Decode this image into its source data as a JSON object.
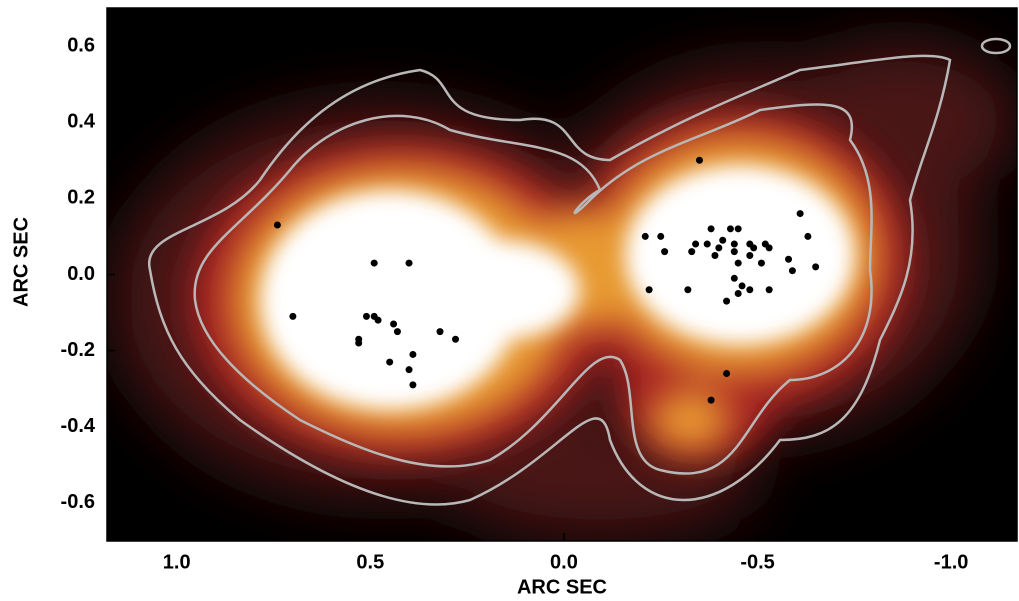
{
  "chart_data": {
    "type": "scatter",
    "x_label": "ARC SEC",
    "y_label": "ARC SEC",
    "xlim": [
      1.18,
      -1.17
    ],
    "ylim": [
      -0.7,
      0.7
    ],
    "xticks": [
      {
        "value": 1,
        "label": "1.0"
      },
      0.5,
      {
        "value": 0,
        "label": "0.0"
      },
      -0.5,
      {
        "value": -1,
        "label": "-1.0"
      }
    ],
    "yticks": [
      -0.6,
      -0.4,
      -0.2,
      {
        "value": 0,
        "label": "0.0"
      },
      0.2,
      0.4,
      0.6
    ],
    "color": "#000000",
    "x": [
      0.74,
      0.7,
      0.49,
      0.4,
      0.51,
      0.49,
      0.48,
      0.44,
      0.43,
      0.53,
      0.53,
      0.32,
      0.28,
      0.45,
      0.39,
      0.4,
      0.39,
      -0.35,
      -0.21,
      -0.25,
      -0.38,
      -0.43,
      -0.45,
      -0.61,
      -0.34,
      -0.37,
      -0.41,
      -0.44,
      -0.48,
      -0.52,
      -0.4,
      -0.44,
      -0.49,
      -0.53,
      -0.63,
      -0.26,
      -0.33,
      -0.39,
      -0.45,
      -0.48,
      -0.51,
      -0.58,
      -0.65,
      -0.59,
      -0.22,
      -0.32,
      -0.44,
      -0.46,
      -0.48,
      -0.45,
      -0.42,
      -0.53,
      -0.42,
      -0.38
    ],
    "values": [
      0.13,
      -0.11,
      0.03,
      0.03,
      -0.11,
      -0.11,
      -0.12,
      -0.13,
      -0.15,
      -0.17,
      -0.18,
      -0.15,
      -0.17,
      -0.23,
      -0.21,
      -0.25,
      -0.29,
      0.3,
      0.1,
      0.1,
      0.12,
      0.12,
      0.12,
      0.16,
      0.08,
      0.08,
      0.09,
      0.08,
      0.08,
      0.08,
      0.07,
      0.06,
      0.07,
      0.07,
      0.1,
      0.06,
      0.06,
      0.05,
      0.03,
      0.05,
      0.03,
      0.04,
      0.02,
      0.01,
      -0.04,
      -0.04,
      -0.01,
      -0.03,
      -0.04,
      -0.05,
      -0.07,
      -0.04,
      -0.26,
      -0.33
    ]
  }
}
